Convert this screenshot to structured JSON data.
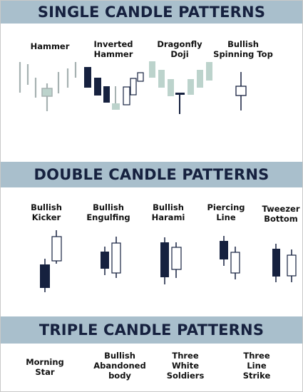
{
  "colors": {
    "banner_bg": "#a9bfcc",
    "banner_text": "#16213f",
    "bullish_fill": "#ffffff",
    "bearish_fill": "#16213f",
    "muted": "#a6b1b1",
    "muted_light": "#bcd3cc",
    "outline": "#16213f"
  },
  "sections": {
    "single": {
      "title": "SINGLE CANDLE PATTERNS"
    },
    "double": {
      "title": "DOUBLE CANDLE PATTERNS"
    },
    "triple": {
      "title": "TRIPLE CANDLE PATTERNS"
    }
  },
  "labels": {
    "hammer": "Hammer",
    "inverted_hammer": "Inverted\nHammer",
    "dragonfly_doji": "Dragonfly\nDoji",
    "bullish_spinning_top": "Bullish\nSpinning Top",
    "bullish_kicker": "Bullish\nKicker",
    "bullish_engulfing": "Bullish\nEngulfing",
    "bullish_harami": "Bullish\nHarami",
    "piercing_line": "Piercing\nLine",
    "tweezer_bottom": "Tweezer\nBottom",
    "morning_star": "Morning\nStar",
    "bullish_abandoned_body": "Bullish\nAbandoned\nbody",
    "three_white_soldiers": "Three\nWhite\nSoldiers",
    "three_line_strike": "Three\nLine\nStrike"
  }
}
